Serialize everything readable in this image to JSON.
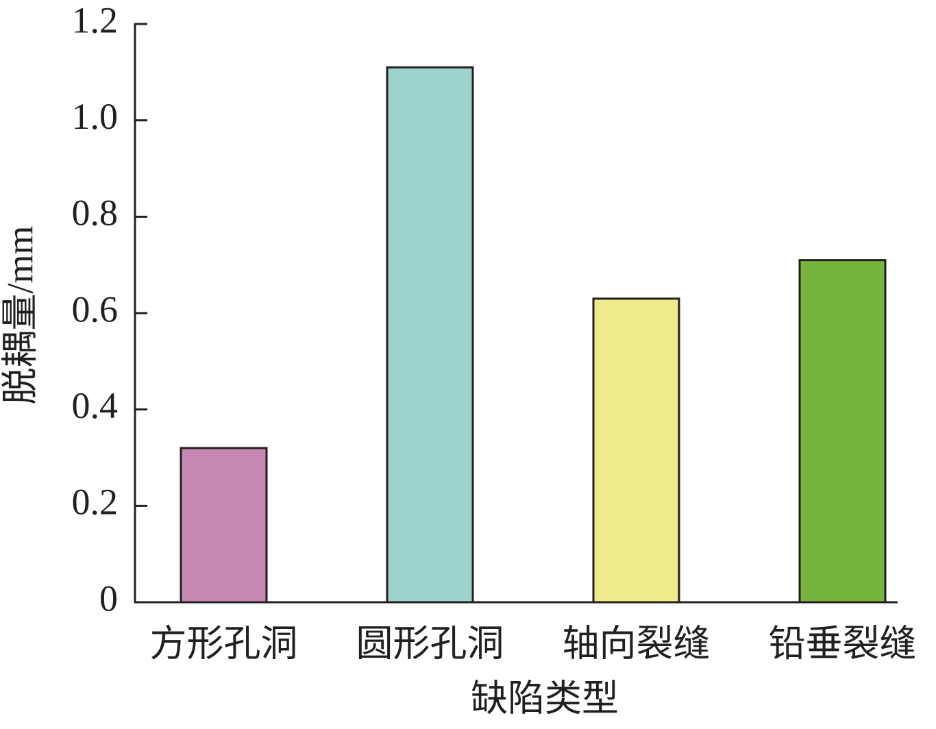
{
  "chart_data": {
    "type": "bar",
    "categories": [
      "方形孔洞",
      "圆形孔洞",
      "轴向裂缝",
      "铅垂裂缝"
    ],
    "values": [
      0.32,
      1.11,
      0.63,
      0.71
    ],
    "colors": [
      "#c687b2",
      "#9dd2cd",
      "#efea8a",
      "#76b53b"
    ],
    "xlabel": "缺陷类型",
    "ylabel": "脱耦量/mm",
    "ylim": [
      0,
      1.2
    ],
    "yticks": [
      0,
      0.2,
      0.4,
      0.6,
      0.8,
      {
        "value": 1,
        "label": "1.0"
      },
      1.2
    ]
  }
}
